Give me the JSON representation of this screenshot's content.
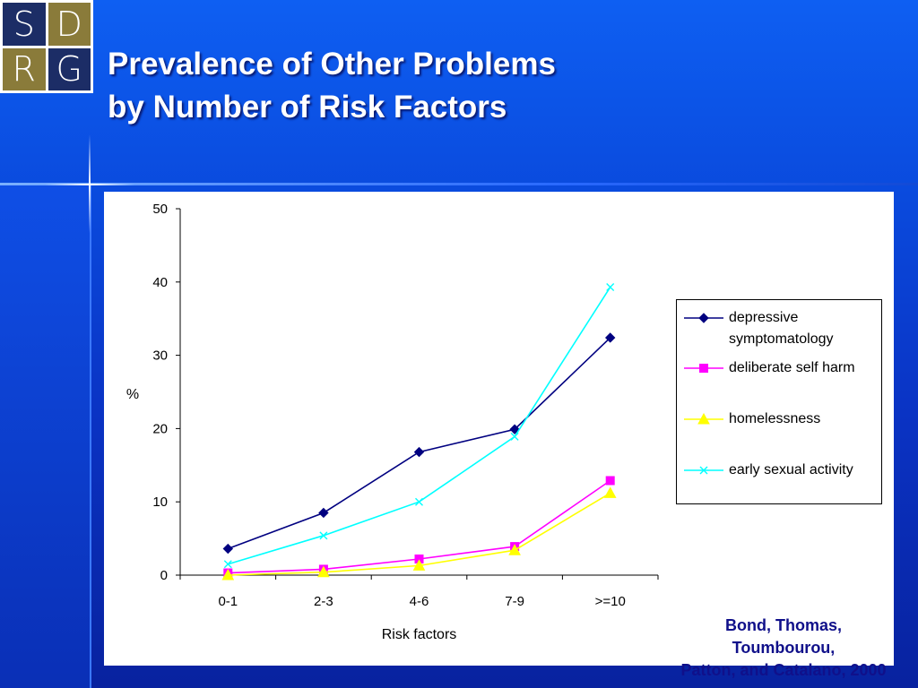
{
  "logo": {
    "letters": [
      "S",
      "D",
      "R",
      "G"
    ]
  },
  "title": {
    "line1": "Prevalence of Other Problems",
    "line2": "by Number of Risk Factors"
  },
  "chart_data": {
    "type": "line",
    "categories": [
      "0-1",
      "2-3",
      "4-6",
      "7-9",
      ">=10"
    ],
    "xlabel": "Risk factors",
    "ylabel": "%",
    "ylim": [
      0,
      50
    ],
    "yticks": [
      0,
      10,
      20,
      30,
      40,
      50
    ],
    "grid": false,
    "legend_position": "right",
    "series": [
      {
        "name": "depressive symptomatology",
        "name_lines": [
          "depressive",
          "symptomatology"
        ],
        "color": "#000080",
        "marker": "diamond",
        "values": [
          3.6,
          8.5,
          16.8,
          19.9,
          32.4
        ]
      },
      {
        "name": "deliberate self harm",
        "name_lines": [
          "deliberate self harm"
        ],
        "color": "#ff00ff",
        "marker": "square",
        "values": [
          0.3,
          0.8,
          2.2,
          3.9,
          12.9
        ]
      },
      {
        "name": "homelessness",
        "name_lines": [
          "homelessness"
        ],
        "color": "#ffff00",
        "marker": "triangle",
        "values": [
          0.0,
          0.4,
          1.3,
          3.4,
          11.2
        ]
      },
      {
        "name": "early sexual activity",
        "name_lines": [
          "early sexual activity"
        ],
        "color": "#00ffff",
        "marker": "x",
        "values": [
          1.5,
          5.4,
          10.0,
          18.9,
          39.3
        ]
      }
    ]
  },
  "citation": {
    "line1": "Bond, Thomas,  Toumbourou,",
    "line2": "Patton, and Catalano, 2000"
  }
}
